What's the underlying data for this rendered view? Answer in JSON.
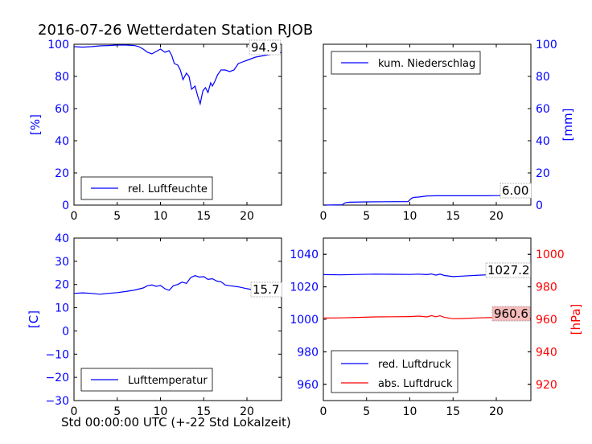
{
  "title": "2016-07-26 Wetterdaten Station RJOB",
  "xlabel": "Std 00:00:00 UTC (+-22 Std Lokalzeit)",
  "colors": {
    "blue": "#0000ff",
    "red": "#ff0000",
    "highlight": "#f7bcbc"
  },
  "chart_data": [
    {
      "type": "line",
      "panel": "humidity",
      "ylabel": "[%]",
      "xlim": [
        0,
        24
      ],
      "ylim": [
        0,
        100
      ],
      "xticks": [
        "0",
        "5",
        "10",
        "15",
        "20"
      ],
      "yticks": [
        "0",
        "20",
        "40",
        "60",
        "80",
        "100"
      ],
      "legend_position": "lower-center",
      "series": [
        {
          "name": "rel. Luftfeuchte",
          "color": "#0000ff",
          "x": [
            0,
            1,
            2,
            3,
            4,
            5,
            6,
            7,
            7.5,
            8,
            8.5,
            9,
            9.5,
            10,
            10.5,
            11,
            11.3,
            11.6,
            12,
            12.3,
            12.6,
            13,
            13.3,
            13.6,
            14,
            14.3,
            14.6,
            14.9,
            15.2,
            15.5,
            15.8,
            16,
            16.3,
            16.6,
            17,
            17.5,
            18,
            18.5,
            19,
            19.5,
            20,
            21,
            22,
            23,
            24
          ],
          "y": [
            98.5,
            98.2,
            98.5,
            99,
            99.2,
            99.5,
            99.5,
            99.2,
            98.5,
            97,
            95,
            94,
            95.5,
            97,
            95,
            96,
            93,
            88,
            87,
            84,
            78,
            82,
            80,
            72,
            74,
            68,
            63,
            71,
            73,
            70,
            76,
            74,
            77,
            81,
            84,
            84,
            83,
            84,
            88,
            89,
            90,
            92,
            93,
            94,
            94.9
          ]
        }
      ],
      "annotation": "94.9"
    },
    {
      "type": "line",
      "panel": "precipitation",
      "ylabel": "[mm]",
      "xlim": [
        0,
        24
      ],
      "ylim": [
        0,
        100
      ],
      "xticks": [
        "0",
        "5",
        "10",
        "15",
        "20"
      ],
      "yticks": [
        "0",
        "20",
        "40",
        "60",
        "80",
        "100"
      ],
      "legend_position": "upper-left",
      "series": [
        {
          "name": "kum. Niederschlag",
          "color": "#0000ff",
          "x": [
            0,
            2.2,
            2.5,
            3,
            5,
            7,
            9.8,
            10.2,
            10.5,
            11,
            12,
            13,
            14,
            15,
            16,
            17,
            18,
            19,
            20,
            21,
            22,
            23,
            24
          ],
          "y": [
            0,
            0.2,
            1.4,
            1.8,
            2,
            2.1,
            2.2,
            4.3,
            4.8,
            5,
            5.7,
            5.8,
            5.8,
            5.8,
            5.8,
            5.8,
            5.8,
            5.8,
            5.9,
            5.9,
            6,
            6,
            6
          ]
        }
      ],
      "annotation": "6.00"
    },
    {
      "type": "line",
      "panel": "temperature",
      "ylabel": "[C]",
      "xlim": [
        0,
        24
      ],
      "ylim": [
        -30,
        40
      ],
      "xticks": [
        "0",
        "5",
        "10",
        "15",
        "20"
      ],
      "yticks": [
        "−30",
        "−20",
        "−10",
        "0",
        "10",
        "20",
        "30",
        "40"
      ],
      "legend_position": "lower-center",
      "series": [
        {
          "name": "Lufttemperatur",
          "color": "#0000ff",
          "x": [
            0,
            1,
            2,
            3,
            4,
            5,
            6,
            7,
            8,
            8.5,
            9,
            9.5,
            10,
            10.5,
            11,
            11.5,
            12,
            12.5,
            13,
            13.5,
            14,
            14.5,
            15,
            15.5,
            16,
            16.5,
            17,
            17.5,
            18,
            19,
            20,
            21,
            22,
            23,
            24
          ],
          "y": [
            16.2,
            16.4,
            16.2,
            15.8,
            16.2,
            16.5,
            17,
            17.6,
            18.5,
            19.5,
            19.8,
            19.2,
            19.6,
            18.2,
            17.5,
            19.5,
            20,
            21,
            20.5,
            23,
            23.8,
            23.2,
            23.4,
            22.2,
            22.5,
            21.5,
            21.2,
            19.8,
            19.5,
            19,
            18.2,
            17.5,
            16.8,
            16,
            15.7
          ]
        }
      ],
      "annotation": "15.7"
    },
    {
      "type": "line",
      "panel": "pressure",
      "ylabel": "[hPa]",
      "xlim": [
        0,
        24
      ],
      "ylim_left": [
        950,
        1050
      ],
      "ylim_right": [
        910,
        1010
      ],
      "xticks": [
        "0",
        "5",
        "10",
        "15",
        "20"
      ],
      "yticks_left": [
        "960",
        "980",
        "1000",
        "1020",
        "1040"
      ],
      "yticks_right": [
        "920",
        "940",
        "960",
        "980",
        "1000"
      ],
      "legend_position": "lower-left",
      "series": [
        {
          "name": "red. Luftdruck",
          "color": "#0000ff",
          "axis": "left",
          "x": [
            0,
            2,
            4,
            6,
            8,
            10,
            11,
            12,
            12.5,
            13,
            13.5,
            14,
            15,
            16,
            18,
            20,
            22,
            24
          ],
          "y": [
            1027.5,
            1027.4,
            1027.6,
            1027.8,
            1027.7,
            1027.6,
            1027.8,
            1027.5,
            1027.9,
            1027.2,
            1027.8,
            1027,
            1026.3,
            1026.6,
            1027.2,
            1027.6,
            1027.4,
            1027.2
          ]
        },
        {
          "name": "abs. Luftdruck",
          "color": "#ff0000",
          "axis": "right",
          "x": [
            0,
            2,
            4,
            6,
            8,
            10,
            11,
            12,
            12.5,
            13,
            13.5,
            14,
            15,
            16,
            18,
            20,
            22,
            24
          ],
          "y": [
            960.8,
            960.9,
            961.2,
            961.5,
            961.6,
            961.7,
            962,
            961.5,
            962.3,
            961.6,
            962.2,
            961.2,
            960.4,
            960.5,
            960.9,
            961.2,
            961,
            960.6
          ]
        }
      ],
      "annotations": [
        "1027.2",
        "960.6"
      ]
    }
  ]
}
